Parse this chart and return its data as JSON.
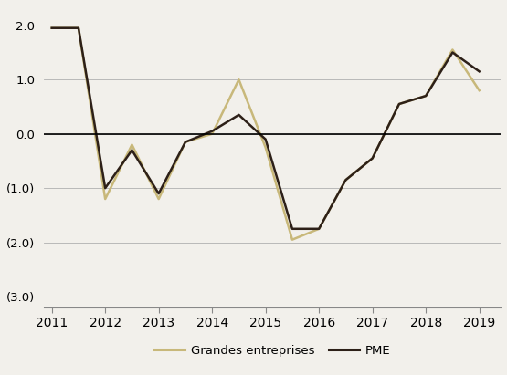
{
  "pme_x": [
    2011,
    2011.5,
    2012,
    2012.5,
    2013,
    2013.5,
    2014,
    2014.5,
    2015,
    2015.5,
    2016,
    2016.5,
    2017,
    2017.5,
    2018,
    2018.5,
    2019
  ],
  "pme_y": [
    1.95,
    1.95,
    -1.0,
    -0.3,
    -1.1,
    -0.15,
    0.05,
    0.35,
    -0.1,
    -1.75,
    -1.75,
    -0.85,
    -0.45,
    0.55,
    0.7,
    1.5,
    1.15
  ],
  "grandes_x": [
    2011,
    2011.5,
    2012,
    2012.5,
    2013,
    2013.5,
    2014,
    2014.5,
    2015,
    2015.5,
    2016,
    2016.5,
    2017,
    2017.5,
    2018,
    2018.5,
    2019
  ],
  "grandes_y": [
    1.95,
    1.95,
    -1.2,
    -0.2,
    -1.2,
    -0.15,
    0.0,
    1.0,
    -0.25,
    -1.95,
    -1.75,
    -0.85,
    -0.45,
    0.55,
    0.7,
    1.55,
    0.8
  ],
  "pme_color": "#2d2018",
  "grandes_color": "#c8b87a",
  "background_color": "#f2f0eb",
  "ylim": [
    -3.2,
    2.35
  ],
  "yticks": [
    2.0,
    1.0,
    0.0,
    -1.0,
    -2.0,
    -3.0
  ],
  "ytick_labels": [
    "2.0",
    "1.0",
    "0.0",
    "(1.0)",
    "(2.0)",
    "(3.0)"
  ],
  "xticks": [
    2011,
    2012,
    2013,
    2014,
    2015,
    2016,
    2017,
    2018,
    2019
  ],
  "xtick_labels": [
    "2011",
    "2012",
    "2013",
    "2014",
    "2015",
    "2016",
    "2017",
    "2018",
    "2019"
  ],
  "pme_label": "PME",
  "grandes_label": "Grandes entreprises",
  "zero_line_color": "#000000",
  "grid_color": "#b0b0b0",
  "linewidth": 1.8
}
